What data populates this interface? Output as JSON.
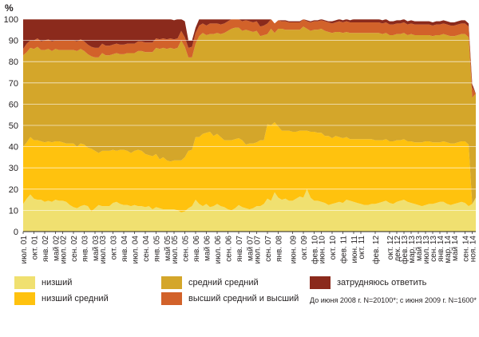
{
  "chart_data": {
    "type": "area",
    "stacked": true,
    "ylabel": "%",
    "ylim": [
      0,
      100
    ],
    "yticks": [
      0,
      10,
      20,
      30,
      40,
      50,
      60,
      70,
      80,
      90,
      100
    ],
    "grid": true,
    "x_tick_labels": [
      "июл. 01",
      "окт. 01",
      "янв. 02",
      "май 02",
      "июл. 02",
      "сен. 02",
      "янв. 03",
      "май 03",
      "июл. 03",
      "окт. 03",
      "янв. 04",
      "июл. 04",
      "сен. 04",
      "янв. 05",
      "май 05",
      "июл. 05",
      "сен. 05",
      "янв. 06",
      "май 06",
      "июл. 06",
      "сен. 06",
      "янв. 07",
      "май 07",
      "июл. 07",
      "сен. 07",
      "янв. 08",
      "июн. 09",
      "окт. 09",
      "фев. 10",
      "июн. 10",
      "окт. 10",
      "фев. 11",
      "июн. 11",
      "окт. 11",
      "фев. 12",
      "окт. 12",
      "дек. 12",
      "фев. 13",
      "мар. 13",
      "май 13",
      "июл. 13",
      "сен. 13",
      "янв. 14",
      "мар. 14",
      "май 14",
      "сен. 14",
      "ноя. 14"
    ],
    "x_tick_indices": [
      0,
      3,
      6,
      9,
      11,
      14,
      17,
      20,
      22,
      25,
      28,
      31,
      34,
      37,
      40,
      42,
      45,
      48,
      51,
      54,
      57,
      60,
      63,
      65,
      68,
      71,
      75,
      78,
      81,
      83,
      86,
      89,
      92,
      94,
      98,
      102,
      104,
      106,
      108,
      110,
      112,
      114,
      116,
      118,
      120,
      123,
      125
    ],
    "series": [
      {
        "name": "низший",
        "color": "#f0e070",
        "values": [
          13,
          15.5,
          17.5,
          15.5,
          15,
          15,
          14,
          14.5,
          14,
          15,
          14.5,
          14.5,
          14,
          12.5,
          11.5,
          11,
          12,
          12.5,
          12,
          9.5,
          11,
          12.5,
          12,
          12,
          12,
          13.5,
          14,
          13,
          12.5,
          12.5,
          12,
          12.5,
          12,
          12,
          11.5,
          12,
          10.5,
          11.5,
          11,
          10.5,
          10.5,
          10.5,
          10.5,
          10,
          9,
          9.5,
          11,
          12,
          15,
          13,
          12,
          13,
          11.5,
          12,
          13,
          12,
          11.5,
          10.5,
          10,
          11,
          12.5,
          11.5,
          11,
          10.5,
          11,
          12,
          12,
          13,
          15.5,
          14.5,
          18.5,
          16,
          15,
          15.5,
          14.5,
          14.5,
          15.5,
          16.5,
          16,
          20,
          16,
          14.5,
          14.5,
          14,
          13.5,
          12.5,
          13,
          13.5,
          14,
          13.5,
          15,
          14.5,
          14,
          13.5,
          13,
          12.5,
          12.5,
          13,
          13,
          13.5,
          14,
          14.5,
          13.5,
          13,
          14,
          14.5,
          15,
          14,
          13.5,
          13,
          12.5,
          12,
          12.5,
          13,
          13,
          13.5,
          14,
          14,
          13,
          12.5,
          13,
          13.5,
          14,
          13.5,
          12,
          13,
          16
        ]
      },
      {
        "name": "низший средний",
        "color": "#ffc20e",
        "values": [
          27,
          26.5,
          27,
          27.5,
          28,
          27.5,
          28,
          28,
          28,
          27.5,
          28,
          27.5,
          27.5,
          29,
          30,
          29,
          29.5,
          28.5,
          27.5,
          29.5,
          27,
          24.5,
          26,
          26,
          26,
          25,
          24,
          25.5,
          26,
          25.5,
          25,
          25.5,
          26.5,
          26,
          25,
          24,
          25,
          25,
          23,
          24.5,
          23,
          22.5,
          23,
          23.5,
          24.5,
          25.5,
          27,
          26.5,
          29.5,
          31.5,
          34,
          33.5,
          35.5,
          33,
          33,
          32.5,
          31.5,
          32.5,
          33,
          32.5,
          31.5,
          31.5,
          30,
          31,
          30.5,
          30,
          31,
          30,
          35,
          35.5,
          33,
          33.5,
          32.5,
          32,
          33,
          32.5,
          31.5,
          31,
          31.5,
          27.5,
          31,
          32.5,
          32,
          32.5,
          31.5,
          32.5,
          31,
          31.5,
          30.5,
          30.5,
          29.5,
          29,
          29.5,
          30,
          30.5,
          31,
          31,
          30.5,
          30,
          29.5,
          29,
          29,
          29,
          29.5,
          29,
          28.5,
          28.5,
          28.5,
          29,
          29,
          29.5,
          30,
          30,
          29.5,
          29,
          28.5,
          28,
          28.5,
          29,
          29,
          28.5,
          28.5,
          28.5,
          29,
          29
        ]
      },
      {
        "name": "средний средний",
        "color": "#d4a62a",
        "values": [
          43,
          42.5,
          42,
          43,
          44,
          43,
          43.5,
          43.5,
          43,
          43.5,
          43,
          43.5,
          44,
          44,
          44,
          45,
          44.5,
          44,
          44,
          43.5,
          44,
          45,
          46,
          45,
          45,
          45,
          46,
          45,
          45,
          46,
          47,
          46,
          46.5,
          47,
          48,
          48.5,
          49,
          50,
          52,
          51.5,
          52.5,
          53.5,
          52.5,
          53,
          56.5,
          52,
          44,
          43.5,
          44,
          47.5,
          47.5,
          46,
          46,
          48,
          47.5,
          48.5,
          50.5,
          51.5,
          52.5,
          52.5,
          52,
          51.5,
          54,
          53,
          52.5,
          52.5,
          49,
          49.5,
          42.5,
          45.5,
          42,
          46,
          48,
          47.5,
          47.5,
          48,
          48,
          47.5,
          49,
          48,
          47.5,
          48,
          48.5,
          49,
          49.5,
          49,
          49.5,
          49,
          49.5,
          49.5,
          49.5,
          50,
          50,
          50,
          50,
          50,
          50,
          50,
          50.5,
          50.5,
          50,
          50,
          50,
          50,
          50,
          50,
          50,
          50,
          50.5,
          50.5,
          50.5,
          50.5,
          50,
          50,
          50,
          50.5,
          50.5,
          50.5,
          50.5,
          50.5,
          50.5,
          50.5,
          50.5,
          50.5,
          50.5,
          50,
          49
        ]
      },
      {
        "name": "высший средний и высший",
        "color": "#d2622a",
        "values": [
          3,
          4,
          3.5,
          4,
          4,
          4,
          4.5,
          4.5,
          4.5,
          4,
          4.5,
          4.5,
          4.5,
          4.5,
          4.5,
          4.5,
          4.5,
          4.5,
          4.5,
          4.5,
          4.5,
          4.5,
          4.5,
          4.5,
          4.5,
          4.5,
          4.5,
          4.5,
          4.5,
          4.5,
          4.5,
          4.5,
          4.5,
          4.5,
          4.5,
          4.5,
          4.5,
          4.5,
          4.5,
          4.5,
          4.5,
          4.5,
          4.5,
          4.5,
          4.5,
          4.5,
          4.5,
          5,
          5,
          5,
          4.5,
          4.5,
          5,
          5,
          4.5,
          4.5,
          4.5,
          4.5,
          4.5,
          4,
          4,
          4.5,
          4.5,
          4.5,
          4.5,
          4.5,
          4.5,
          4.5,
          5,
          4.5,
          4.5,
          4,
          3.5,
          4,
          3.5,
          3.5,
          3.5,
          3.5,
          3.5,
          3.5,
          4,
          4,
          4,
          4,
          4.5,
          4.5,
          4.5,
          4.5,
          5,
          5,
          5,
          5,
          5,
          5,
          5,
          5,
          5,
          5,
          5,
          5,
          5,
          5,
          5,
          5,
          5,
          5,
          5,
          5,
          5,
          5,
          5,
          5,
          5,
          5,
          5,
          5,
          5,
          5,
          5,
          5,
          5,
          5,
          5,
          5,
          5,
          5
        ]
      },
      {
        "name": "затрудняюсь ответить",
        "color": "#8b2a1c",
        "values": [
          14,
          11.5,
          10,
          10,
          9,
          10.5,
          10,
          9.5,
          10.5,
          10,
          10,
          10,
          10,
          10,
          10,
          10.5,
          9.5,
          10.5,
          12,
          13,
          13.5,
          13.5,
          11.5,
          12.5,
          12.5,
          12,
          11.5,
          12,
          12,
          11.5,
          11.5,
          11.5,
          11,
          10.5,
          11,
          11,
          11.5,
          9,
          9.5,
          9,
          9.5,
          9,
          9,
          9,
          5.5,
          7.5,
          3.5,
          3,
          2.5,
          3,
          2,
          3,
          2,
          2,
          2,
          2.5,
          2,
          1,
          1,
          0,
          0,
          1,
          2.5,
          1,
          1.5,
          1,
          3.5,
          3,
          2,
          0,
          0,
          0,
          0.5,
          0.5,
          0.5,
          0.5,
          0.5,
          0.5,
          0.5,
          0.5,
          0.5,
          0.5,
          0.5,
          0.5,
          0.5,
          0.5,
          1,
          1,
          1,
          1,
          1,
          1,
          1.5,
          1.5,
          1.5,
          1.5,
          1.5,
          1.5,
          1.5,
          1.5,
          1.5,
          1.5,
          1.5,
          1.5,
          1.5,
          1.5,
          1.5,
          1.5,
          1.5,
          1.5,
          1.5,
          1.5,
          1.5,
          1.5,
          1.5,
          1.5,
          1.5,
          1.5,
          1.5,
          1.5,
          1.5,
          1.5,
          1.5,
          1.5,
          1.5,
          1.5
        ]
      }
    ],
    "legend_placement": "bottom",
    "note": "До июня 2008 г. N=20100*; с июня 2009 г. N=1600*"
  },
  "legend": {
    "items": [
      {
        "label": "низший",
        "color": "#f0e070"
      },
      {
        "label": "низший средний",
        "color": "#ffc20e"
      },
      {
        "label": "средний средний",
        "color": "#d4a62a"
      },
      {
        "label": "высший средний и высший",
        "color": "#d2622a"
      },
      {
        "label": "затрудняюсь ответить",
        "color": "#8b2a1c"
      }
    ]
  }
}
